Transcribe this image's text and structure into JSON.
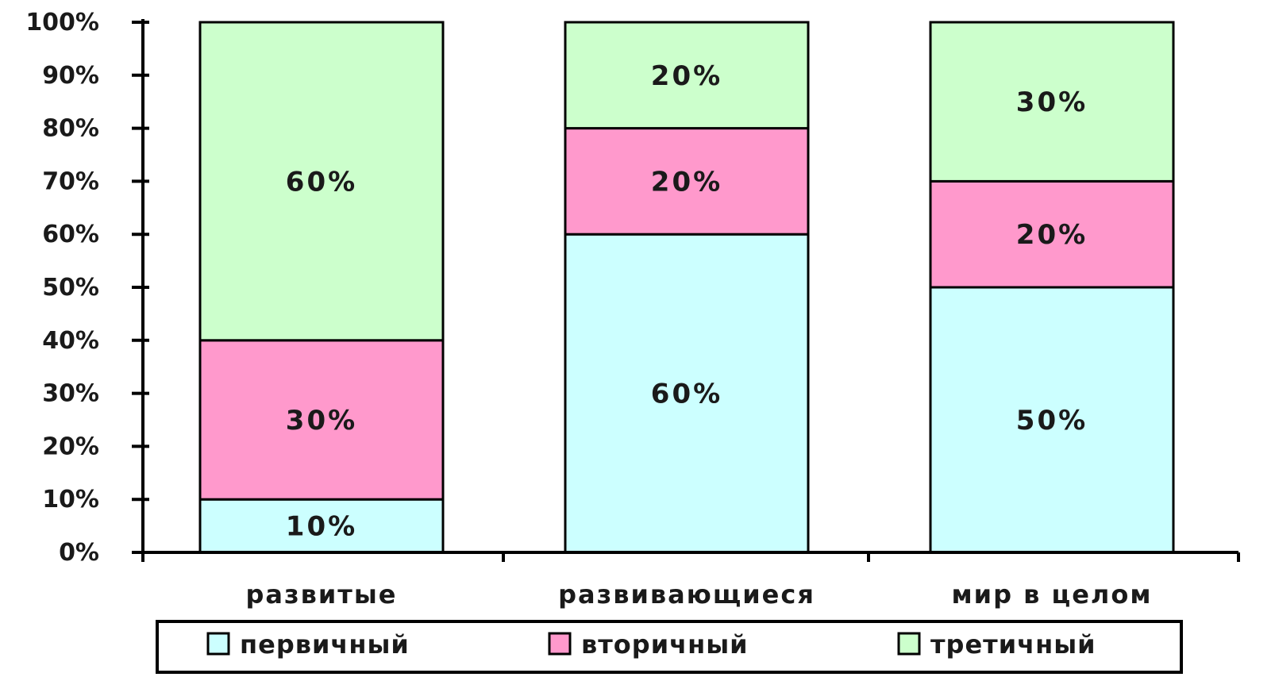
{
  "chart_data": {
    "type": "bar",
    "stacked": true,
    "categories": [
      "развитые",
      "развивающиеся",
      "мир в целом"
    ],
    "series": [
      {
        "name": "первичный",
        "values": [
          10,
          60,
          50
        ],
        "labels": [
          "10%",
          "60%",
          "50%"
        ],
        "color": "#ccffff"
      },
      {
        "name": "вторичный",
        "values": [
          30,
          20,
          20
        ],
        "labels": [
          "30%",
          "20%",
          "20%"
        ],
        "color": "#ff99cc"
      },
      {
        "name": "третичный",
        "values": [
          60,
          20,
          30
        ],
        "labels": [
          "60%",
          "20%",
          "30%"
        ],
        "color": "#ccffcc"
      }
    ],
    "ylim": [
      0,
      100
    ],
    "yticks": [
      "0%",
      "10%",
      "20%",
      "30%",
      "40%",
      "50%",
      "60%",
      "70%",
      "80%",
      "90%",
      "100%"
    ],
    "grid": false,
    "legend": "bottom"
  }
}
